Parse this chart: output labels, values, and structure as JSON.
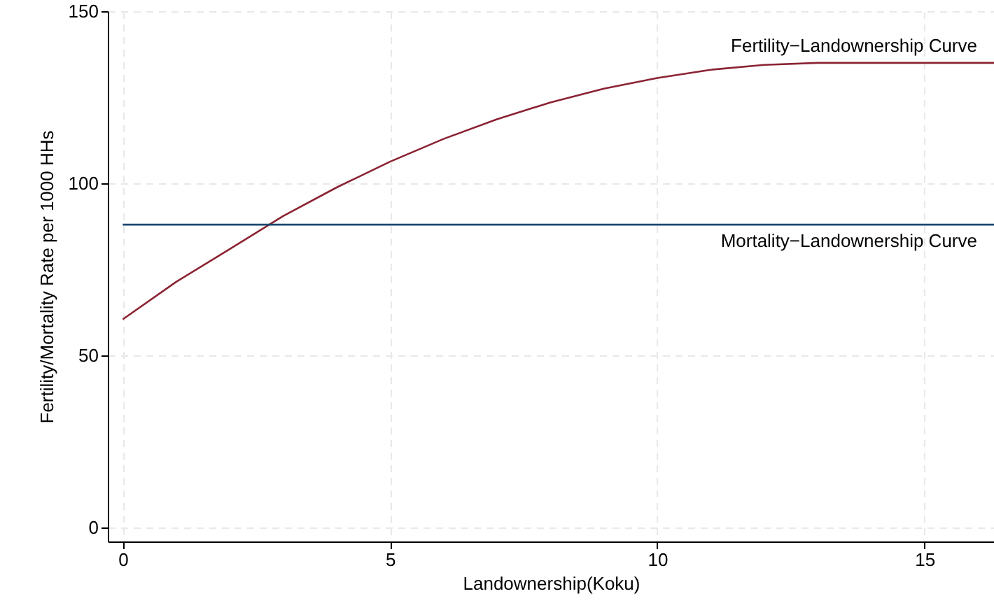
{
  "chart_data": {
    "type": "line",
    "xlabel": "Landownership(Koku)",
    "ylabel": "Fertility/Mortality Rate per 1000 HHs",
    "xlim": [
      -0.28,
      16.3
    ],
    "ylim": [
      -4,
      150
    ],
    "xticks": [
      0,
      5,
      10,
      15
    ],
    "yticks": [
      0,
      50,
      100,
      150
    ],
    "grid": true,
    "marker": "none",
    "line_style": "solid",
    "series": [
      {
        "name": "Fertility−Landownership Curve",
        "color": "#8b2332",
        "x": [
          0,
          1,
          2,
          3,
          4,
          5,
          6,
          7,
          8,
          9,
          10,
          11,
          12,
          13,
          13.2,
          16.3
        ],
        "values": [
          60.5,
          71.4,
          80.9,
          90.5,
          98.8,
          106.3,
          112.9,
          118.6,
          123.5,
          127.5,
          130.6,
          133.0,
          134.4,
          135.0,
          135.0,
          135.0
        ]
      },
      {
        "name": "Mortality−Landownership Curve",
        "color": "#1a476f",
        "x": [
          0,
          16.3
        ],
        "values": [
          88,
          88
        ]
      }
    ]
  }
}
